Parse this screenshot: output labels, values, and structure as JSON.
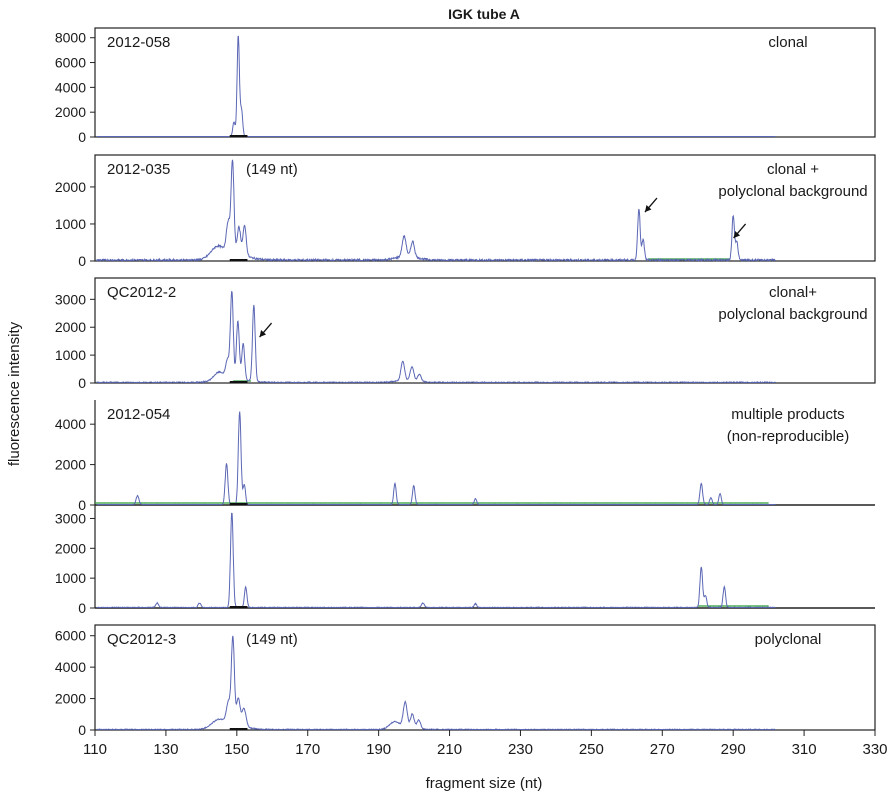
{
  "chart_data": {
    "type": "line",
    "title": "IGK tube A",
    "xlabel": "fragment size (nt)",
    "ylabel": "fluorescence intensity",
    "xlim": [
      110,
      330
    ],
    "xticks": [
      110,
      130,
      150,
      170,
      190,
      210,
      230,
      250,
      270,
      290,
      310,
      330
    ],
    "colors": {
      "signal": "#5b67b5",
      "control": "#2a9d3a",
      "baseline": "#111111"
    },
    "panels": [
      {
        "sample": "2012-058",
        "annotation": [
          "clonal"
        ],
        "size_label": "",
        "ylim": [
          0,
          8300
        ],
        "yticks": [
          0,
          2000,
          4000,
          6000,
          8000
        ],
        "peaks": [
          {
            "x": 149.2,
            "y": 1200,
            "w": 0.35
          },
          {
            "x": 150.4,
            "y": 8150,
            "w": 0.32
          },
          {
            "x": 151.3,
            "y": 2200,
            "w": 0.35
          }
        ],
        "noise": 15,
        "arrows": []
      },
      {
        "sample": "2012-035",
        "annotation": [
          "clonal +",
          "polyclonal background"
        ],
        "size_label": "(149 nt)",
        "ylim": [
          0,
          2700
        ],
        "yticks": [
          0,
          1000,
          2000
        ],
        "peaks": [
          {
            "x": 144.5,
            "y": 300,
            "w": 1.8
          },
          {
            "x": 147.6,
            "y": 850,
            "w": 0.55
          },
          {
            "x": 148.8,
            "y": 2480,
            "w": 0.4
          },
          {
            "x": 150.6,
            "y": 750,
            "w": 0.5
          },
          {
            "x": 152.2,
            "y": 820,
            "w": 0.45
          },
          {
            "x": 197.2,
            "y": 550,
            "w": 0.55
          },
          {
            "x": 199.6,
            "y": 420,
            "w": 0.5
          },
          {
            "x": 263.4,
            "y": 1400,
            "w": 0.35
          },
          {
            "x": 264.6,
            "y": 550,
            "w": 0.35
          },
          {
            "x": 290.0,
            "y": 1200,
            "w": 0.35
          },
          {
            "x": 291.0,
            "y": 500,
            "w": 0.35
          }
        ],
        "noise": 50,
        "arrows": [
          {
            "x": 268.5,
            "y": 1700
          },
          {
            "x": 293.5,
            "y": 1000
          }
        ]
      },
      {
        "sample": "QC2012-2",
        "annotation": [
          "clonal+",
          "polyclonal background"
        ],
        "size_label": "",
        "ylim": [
          0,
          3550
        ],
        "yticks": [
          0,
          1000,
          2000,
          3000
        ],
        "peaks": [
          {
            "x": 145.0,
            "y": 300,
            "w": 1.5
          },
          {
            "x": 147.4,
            "y": 650,
            "w": 0.5
          },
          {
            "x": 148.6,
            "y": 3100,
            "w": 0.4
          },
          {
            "x": 150.3,
            "y": 2100,
            "w": 0.4
          },
          {
            "x": 151.8,
            "y": 1300,
            "w": 0.4
          },
          {
            "x": 154.8,
            "y": 2750,
            "w": 0.38
          },
          {
            "x": 196.8,
            "y": 700,
            "w": 0.5
          },
          {
            "x": 199.4,
            "y": 500,
            "w": 0.5
          },
          {
            "x": 201.5,
            "y": 250,
            "w": 0.5
          }
        ],
        "noise": 40,
        "arrows": [
          {
            "x": 159.8,
            "y": 2150
          }
        ]
      },
      {
        "sample": "2012-054",
        "annotation": [
          "multiple products",
          "(non-reproducible)"
        ],
        "size_label": "",
        "ylim": [
          0,
          4900
        ],
        "yticks": [
          0,
          2000,
          4000
        ],
        "peaks": [
          {
            "x": 122.0,
            "y": 450,
            "w": 0.4
          },
          {
            "x": 147.1,
            "y": 2050,
            "w": 0.38
          },
          {
            "x": 150.8,
            "y": 4600,
            "w": 0.38
          },
          {
            "x": 152.1,
            "y": 1000,
            "w": 0.35
          },
          {
            "x": 194.6,
            "y": 1050,
            "w": 0.35
          },
          {
            "x": 199.9,
            "y": 950,
            "w": 0.35
          },
          {
            "x": 217.3,
            "y": 300,
            "w": 0.35
          },
          {
            "x": 281.0,
            "y": 1050,
            "w": 0.38
          },
          {
            "x": 283.7,
            "y": 350,
            "w": 0.35
          },
          {
            "x": 286.3,
            "y": 550,
            "w": 0.35
          }
        ],
        "noise": 30,
        "arrows": []
      },
      {
        "sample": "",
        "annotation": [],
        "size_label": "",
        "ylim": [
          0,
          3250
        ],
        "yticks": [
          0,
          1000,
          2000,
          3000
        ],
        "peaks": [
          {
            "x": 127.5,
            "y": 150,
            "w": 0.4
          },
          {
            "x": 139.5,
            "y": 150,
            "w": 0.4
          },
          {
            "x": 148.6,
            "y": 3200,
            "w": 0.38
          },
          {
            "x": 152.5,
            "y": 700,
            "w": 0.35
          },
          {
            "x": 202.5,
            "y": 150,
            "w": 0.4
          },
          {
            "x": 217.3,
            "y": 130,
            "w": 0.35
          },
          {
            "x": 281.0,
            "y": 1350,
            "w": 0.38
          },
          {
            "x": 282.2,
            "y": 400,
            "w": 0.35
          },
          {
            "x": 287.5,
            "y": 700,
            "w": 0.35
          }
        ],
        "noise": 30,
        "arrows": []
      },
      {
        "sample": "QC2012-3",
        "annotation": [
          "polyclonal"
        ],
        "size_label": "(149 nt)",
        "ylim": [
          0,
          6300
        ],
        "yticks": [
          0,
          2000,
          4000,
          6000
        ],
        "peaks": [
          {
            "x": 145.0,
            "y": 550,
            "w": 2.0
          },
          {
            "x": 147.7,
            "y": 1400,
            "w": 0.6
          },
          {
            "x": 148.9,
            "y": 5500,
            "w": 0.42
          },
          {
            "x": 150.4,
            "y": 1800,
            "w": 0.5
          },
          {
            "x": 152.0,
            "y": 1200,
            "w": 0.6
          },
          {
            "x": 194.5,
            "y": 450,
            "w": 1.4
          },
          {
            "x": 197.5,
            "y": 1600,
            "w": 0.55
          },
          {
            "x": 199.5,
            "y": 900,
            "w": 0.5
          },
          {
            "x": 201.3,
            "y": 550,
            "w": 0.5
          }
        ],
        "noise": 60,
        "arrows": []
      }
    ]
  }
}
